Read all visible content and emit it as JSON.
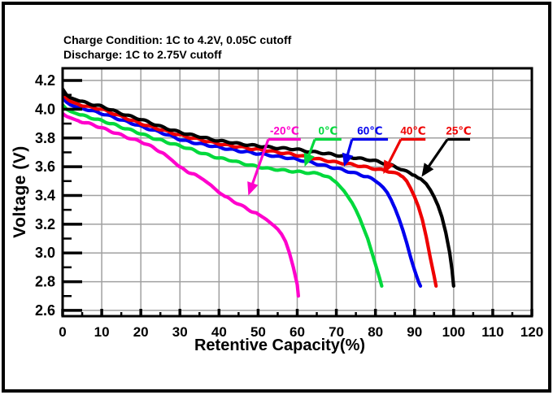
{
  "chart_data": {
    "type": "line",
    "title": "",
    "condition_lines": [
      "Charge Condition: 1C to 4.2V, 0.05C cutoff",
      "Discharge: 1C to 2.75V cutoff"
    ],
    "xlabel": "Retentive Capacity(%)",
    "ylabel": "Voltage (V)",
    "xlim": [
      0,
      120
    ],
    "ylim": [
      2.56,
      4.285
    ],
    "x_major_ticks": [
      0,
      10,
      20,
      30,
      40,
      50,
      60,
      70,
      80,
      90,
      100,
      110,
      120
    ],
    "x_minor_ticks": [
      5,
      15,
      25,
      35,
      45,
      55,
      65,
      75,
      85,
      95,
      105,
      115
    ],
    "y_major_ticks": [
      "4.2",
      "4.0",
      "3.8",
      "3.6",
      "3.4",
      "3.2",
      "3.0",
      "2.8",
      "2.6"
    ],
    "y_minor_ticks": [
      4.1,
      3.9,
      3.7,
      3.5,
      3.3,
      3.1,
      2.9,
      2.7
    ],
    "grid": true,
    "grid_color": "#A0A0A0",
    "axis_color": "#000000",
    "legend_position": "inline-arrow-callouts",
    "series": [
      {
        "name": "-20℃",
        "color": "#FF00CC",
        "points": [
          [
            0,
            3.97
          ],
          [
            1,
            3.95
          ],
          [
            2,
            3.94
          ],
          [
            4,
            3.92
          ],
          [
            6,
            3.905
          ],
          [
            8,
            3.89
          ],
          [
            10,
            3.87
          ],
          [
            13,
            3.84
          ],
          [
            15,
            3.82
          ],
          [
            18,
            3.79
          ],
          [
            20,
            3.775
          ],
          [
            22,
            3.75
          ],
          [
            24,
            3.72
          ],
          [
            26,
            3.69
          ],
          [
            28,
            3.645
          ],
          [
            30,
            3.595
          ],
          [
            32,
            3.565
          ],
          [
            34,
            3.545
          ],
          [
            36,
            3.51
          ],
          [
            38,
            3.47
          ],
          [
            40,
            3.42
          ],
          [
            42,
            3.385
          ],
          [
            44,
            3.355
          ],
          [
            46,
            3.325
          ],
          [
            48,
            3.295
          ],
          [
            50,
            3.27
          ],
          [
            52,
            3.235
          ],
          [
            54,
            3.19
          ],
          [
            55,
            3.165
          ],
          [
            56,
            3.13
          ],
          [
            57,
            3.08
          ],
          [
            58,
            3.0
          ],
          [
            59,
            2.9
          ],
          [
            60,
            2.78
          ],
          [
            60.3,
            2.7
          ]
        ]
      },
      {
        "name": "0℃",
        "color": "#00D93C",
        "points": [
          [
            0,
            4.03
          ],
          [
            1,
            4.0
          ],
          [
            2,
            3.985
          ],
          [
            4,
            3.965
          ],
          [
            6,
            3.95
          ],
          [
            8,
            3.935
          ],
          [
            10,
            3.92
          ],
          [
            13,
            3.895
          ],
          [
            15,
            3.875
          ],
          [
            18,
            3.85
          ],
          [
            20,
            3.83
          ],
          [
            23,
            3.8
          ],
          [
            25,
            3.785
          ],
          [
            28,
            3.76
          ],
          [
            30,
            3.745
          ],
          [
            33,
            3.72
          ],
          [
            35,
            3.7
          ],
          [
            38,
            3.675
          ],
          [
            40,
            3.66
          ],
          [
            43,
            3.645
          ],
          [
            45,
            3.63
          ],
          [
            48,
            3.61
          ],
          [
            50,
            3.6
          ],
          [
            53,
            3.585
          ],
          [
            55,
            3.58
          ],
          [
            58,
            3.57
          ],
          [
            60,
            3.565
          ],
          [
            62,
            3.56
          ],
          [
            64,
            3.555
          ],
          [
            66,
            3.55
          ],
          [
            68,
            3.525
          ],
          [
            69,
            3.51
          ],
          [
            70,
            3.49
          ],
          [
            71,
            3.46
          ],
          [
            72,
            3.43
          ],
          [
            73,
            3.39
          ],
          [
            74,
            3.35
          ],
          [
            75,
            3.3
          ],
          [
            76,
            3.24
          ],
          [
            77,
            3.17
          ],
          [
            78,
            3.1
          ],
          [
            79,
            3.01
          ],
          [
            80,
            2.92
          ],
          [
            81,
            2.83
          ],
          [
            81.6,
            2.77
          ]
        ]
      },
      {
        "name": "60℃",
        "color": "#0000EE",
        "points": [
          [
            0,
            4.08
          ],
          [
            1,
            4.05
          ],
          [
            2,
            4.03
          ],
          [
            4,
            4.01
          ],
          [
            6,
            4.0
          ],
          [
            8,
            3.985
          ],
          [
            10,
            3.97
          ],
          [
            13,
            3.945
          ],
          [
            15,
            3.925
          ],
          [
            18,
            3.9
          ],
          [
            20,
            3.88
          ],
          [
            23,
            3.855
          ],
          [
            25,
            3.84
          ],
          [
            28,
            3.81
          ],
          [
            30,
            3.79
          ],
          [
            33,
            3.77
          ],
          [
            35,
            3.76
          ],
          [
            38,
            3.745
          ],
          [
            40,
            3.735
          ],
          [
            43,
            3.72
          ],
          [
            45,
            3.71
          ],
          [
            48,
            3.7
          ],
          [
            50,
            3.69
          ],
          [
            53,
            3.68
          ],
          [
            55,
            3.67
          ],
          [
            58,
            3.66
          ],
          [
            60,
            3.65
          ],
          [
            63,
            3.635
          ],
          [
            65,
            3.62
          ],
          [
            68,
            3.6
          ],
          [
            70,
            3.59
          ],
          [
            72,
            3.575
          ],
          [
            74,
            3.56
          ],
          [
            76,
            3.545
          ],
          [
            78,
            3.53
          ],
          [
            80,
            3.5
          ],
          [
            81,
            3.48
          ],
          [
            82,
            3.455
          ],
          [
            83,
            3.42
          ],
          [
            84,
            3.37
          ],
          [
            85,
            3.31
          ],
          [
            86,
            3.24
          ],
          [
            87,
            3.16
          ],
          [
            88,
            3.07
          ],
          [
            89,
            2.97
          ],
          [
            90,
            2.88
          ],
          [
            91,
            2.8
          ],
          [
            91.5,
            2.77
          ]
        ]
      },
      {
        "name": "40℃",
        "color": "#EE0000",
        "points": [
          [
            0,
            4.11
          ],
          [
            1,
            4.075
          ],
          [
            2,
            4.055
          ],
          [
            4,
            4.035
          ],
          [
            6,
            4.02
          ],
          [
            8,
            4.01
          ],
          [
            10,
            4.0
          ],
          [
            13,
            3.97
          ],
          [
            15,
            3.95
          ],
          [
            18,
            3.92
          ],
          [
            20,
            3.9
          ],
          [
            23,
            3.875
          ],
          [
            25,
            3.86
          ],
          [
            28,
            3.835
          ],
          [
            30,
            3.82
          ],
          [
            33,
            3.8
          ],
          [
            35,
            3.79
          ],
          [
            38,
            3.77
          ],
          [
            40,
            3.76
          ],
          [
            43,
            3.745
          ],
          [
            45,
            3.74
          ],
          [
            48,
            3.725
          ],
          [
            50,
            3.72
          ],
          [
            53,
            3.71
          ],
          [
            55,
            3.7
          ],
          [
            58,
            3.69
          ],
          [
            60,
            3.68
          ],
          [
            63,
            3.665
          ],
          [
            65,
            3.655
          ],
          [
            68,
            3.64
          ],
          [
            70,
            3.63
          ],
          [
            73,
            3.62
          ],
          [
            75,
            3.61
          ],
          [
            78,
            3.595
          ],
          [
            80,
            3.585
          ],
          [
            82,
            3.575
          ],
          [
            84,
            3.565
          ],
          [
            85,
            3.555
          ],
          [
            86,
            3.545
          ],
          [
            87,
            3.53
          ],
          [
            88,
            3.5
          ],
          [
            89,
            3.45
          ],
          [
            90,
            3.39
          ],
          [
            91,
            3.32
          ],
          [
            92,
            3.23
          ],
          [
            93,
            3.11
          ],
          [
            94,
            2.97
          ],
          [
            95,
            2.84
          ],
          [
            95.5,
            2.77
          ]
        ]
      },
      {
        "name": "25℃",
        "color": "#000000",
        "points": [
          [
            0,
            4.14
          ],
          [
            1,
            4.1
          ],
          [
            2,
            4.08
          ],
          [
            4,
            4.06
          ],
          [
            6,
            4.045
          ],
          [
            8,
            4.03
          ],
          [
            10,
            4.02
          ],
          [
            13,
            3.99
          ],
          [
            15,
            3.97
          ],
          [
            18,
            3.945
          ],
          [
            20,
            3.93
          ],
          [
            23,
            3.9
          ],
          [
            25,
            3.88
          ],
          [
            28,
            3.855
          ],
          [
            30,
            3.84
          ],
          [
            33,
            3.82
          ],
          [
            35,
            3.81
          ],
          [
            38,
            3.79
          ],
          [
            40,
            3.78
          ],
          [
            43,
            3.77
          ],
          [
            45,
            3.76
          ],
          [
            48,
            3.75
          ],
          [
            50,
            3.745
          ],
          [
            53,
            3.735
          ],
          [
            55,
            3.73
          ],
          [
            58,
            3.725
          ],
          [
            60,
            3.72
          ],
          [
            63,
            3.705
          ],
          [
            65,
            3.7
          ],
          [
            68,
            3.69
          ],
          [
            70,
            3.68
          ],
          [
            73,
            3.67
          ],
          [
            75,
            3.66
          ],
          [
            78,
            3.65
          ],
          [
            80,
            3.64
          ],
          [
            82,
            3.625
          ],
          [
            84,
            3.61
          ],
          [
            86,
            3.59
          ],
          [
            88,
            3.565
          ],
          [
            90,
            3.54
          ],
          [
            91,
            3.52
          ],
          [
            92,
            3.505
          ],
          [
            93,
            3.48
          ],
          [
            94,
            3.44
          ],
          [
            95,
            3.39
          ],
          [
            96,
            3.33
          ],
          [
            97,
            3.25
          ],
          [
            98,
            3.14
          ],
          [
            99,
            3.0
          ],
          [
            99.6,
            2.88
          ],
          [
            100,
            2.77
          ]
        ]
      }
    ],
    "annotations": [
      {
        "label": "-20℃",
        "text_color": "#FF00CC",
        "line_color": "#FF00CC",
        "tip": [
          47.5,
          3.4
        ],
        "attach": [
          52.6,
          3.79
        ],
        "underline_to": [
          60.9,
          3.79
        ]
      },
      {
        "label": "0℃",
        "text_color": "#00D93C",
        "line_color": "#00D93C",
        "tip": [
          61.9,
          3.6
        ],
        "attach": [
          64.5,
          3.79
        ],
        "underline_to": [
          71.3,
          3.79
        ]
      },
      {
        "label": "60℃",
        "text_color": "#0000EE",
        "line_color": "#0000EE",
        "tip": [
          72.0,
          3.6
        ],
        "attach": [
          74.0,
          3.79
        ],
        "underline_to": [
          83.2,
          3.79
        ]
      },
      {
        "label": "40℃",
        "text_color": "#EE0000",
        "line_color": "#EE0000",
        "tip": [
          82.0,
          3.55
        ],
        "attach": [
          86.5,
          3.79
        ],
        "underline_to": [
          92.8,
          3.79
        ]
      },
      {
        "label": "25℃",
        "text_color": "#EE0000",
        "line_color": "#000000",
        "tip": [
          91.8,
          3.53
        ],
        "attach": [
          98.4,
          3.79
        ],
        "underline_to": [
          104.2,
          3.79
        ]
      }
    ]
  }
}
